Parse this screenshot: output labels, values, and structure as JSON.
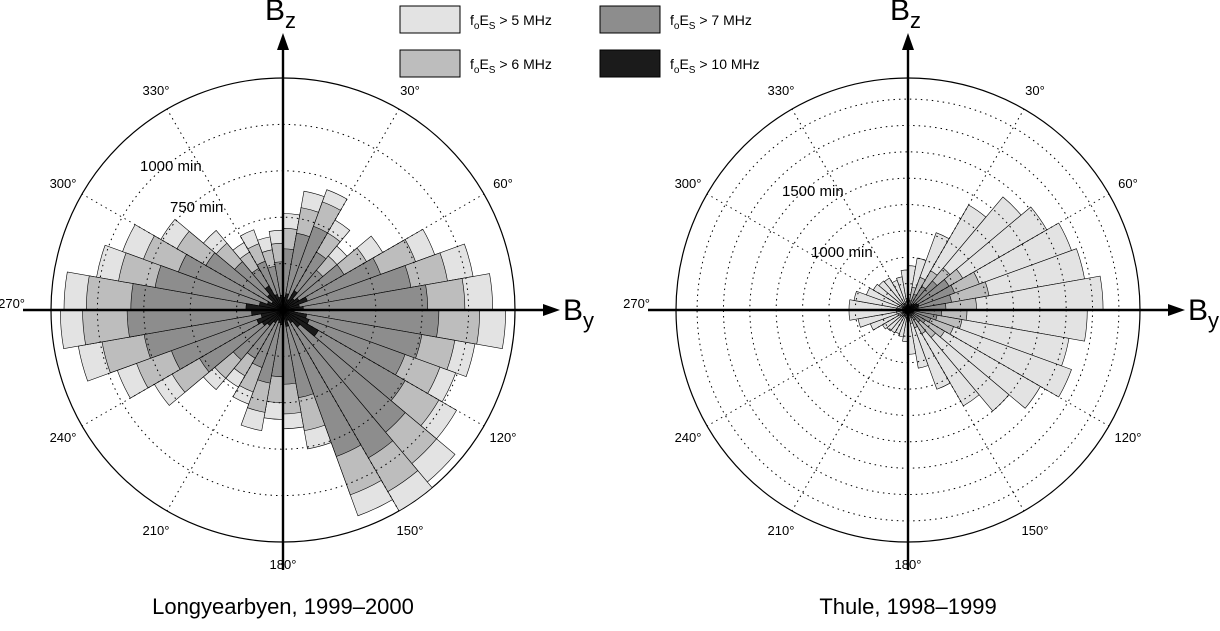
{
  "legend": [
    {
      "label_main": "f",
      "sub1": "o",
      "mid": "E",
      "sub2": "S",
      "rest": " > 5 MHz",
      "color": "#e3e3e3"
    },
    {
      "label_main": "f",
      "sub1": "o",
      "mid": "E",
      "sub2": "S",
      "rest": " > 7 MHz",
      "color": "#8d8d8d"
    },
    {
      "label_main": "f",
      "sub1": "o",
      "mid": "E",
      "sub2": "S",
      "rest": " > 6 MHz",
      "color": "#bdbdbd"
    },
    {
      "label_main": "f",
      "sub1": "o",
      "mid": "E",
      "sub2": "S",
      "rest": " > 10 MHz",
      "color": "#1b1b1b"
    }
  ],
  "axes": {
    "vertical_letter": "B",
    "vertical_sub": "z",
    "horizontal_letter": "B",
    "horizontal_sub": "y"
  },
  "chart_data": [
    {
      "type": "polar-histogram",
      "caption": "Longyearbyen, 1999–2000",
      "bin_width_deg": 10,
      "ring_labels": [
        "750 min",
        "1000 min"
      ],
      "ring_label_values": [
        750,
        1000
      ],
      "r_max_minutes": 1250,
      "angle_labels": [
        "30°",
        "60°",
        "120°",
        "150°",
        "180°",
        "210°",
        "240°",
        "270°",
        "300°",
        "330°"
      ],
      "series": [
        {
          "name": "foEs > 5 MHz",
          "color": "#e3e3e3",
          "values": [
            520,
            650,
            690,
            560,
            450,
            620,
            870,
            1040,
            1130,
            1200,
            1050,
            990,
            1080,
            1210,
            1250,
            1180,
            760,
            640,
            590,
            660,
            540,
            480,
            560,
            800,
            950,
            1120,
            1200,
            1180,
            1020,
            920,
            760,
            560,
            420,
            460,
            400,
            430
          ]
        },
        {
          "name": "foEs > 6 MHz",
          "color": "#bdbdbd",
          "values": [
            440,
            560,
            620,
            480,
            380,
            520,
            760,
            900,
            980,
            1060,
            940,
            900,
            970,
            1080,
            1130,
            1060,
            660,
            560,
            500,
            560,
            470,
            410,
            480,
            690,
            840,
            990,
            1080,
            1060,
            900,
            800,
            660,
            470,
            360,
            380,
            330,
            360
          ]
        },
        {
          "name": "foEs > 7 MHz",
          "color": "#8d8d8d",
          "values": [
            330,
            420,
            480,
            360,
            280,
            380,
            560,
            700,
            780,
            840,
            760,
            700,
            760,
            860,
            920,
            840,
            480,
            400,
            360,
            400,
            330,
            300,
            350,
            520,
            640,
            760,
            840,
            820,
            700,
            600,
            480,
            340,
            260,
            280,
            240,
            260
          ]
        },
        {
          "name": "foEs > 10 MHz",
          "color": "#1b1b1b",
          "values": [
            70,
            90,
            60,
            120,
            80,
            100,
            140,
            90,
            110,
            60,
            130,
            150,
            220,
            120,
            80,
            60,
            90,
            50,
            80,
            70,
            60,
            80,
            110,
            130,
            150,
            120,
            170,
            200,
            130,
            90,
            70,
            110,
            150,
            90,
            70,
            80
          ]
        }
      ]
    },
    {
      "type": "polar-histogram",
      "caption": "Thule, 1998–1999",
      "bin_width_deg": 10,
      "ring_labels": [
        "1000 min",
        "1500 min"
      ],
      "ring_label_values": [
        1000,
        1500
      ],
      "r_max_minutes": 2200,
      "angle_labels": [
        "30°",
        "60°",
        "120°",
        "150°",
        "180°",
        "210°",
        "240°",
        "270°",
        "300°",
        "330°"
      ],
      "series": [
        {
          "name": "foEs > 5 MHz",
          "color": "#e3e3e3",
          "values": [
            420,
            500,
            780,
            1150,
            1400,
            1520,
            1650,
            1700,
            1850,
            1700,
            1550,
            1650,
            1450,
            1250,
            1050,
            800,
            560,
            420,
            300,
            260,
            240,
            250,
            260,
            280,
            380,
            480,
            560,
            560,
            520,
            420,
            380,
            360,
            350,
            300,
            320,
            380
          ]
        },
        {
          "name": "foEs > 6 MHz",
          "color": "#bdbdbd",
          "values": [
            150,
            220,
            330,
            430,
            520,
            600,
            720,
            780,
            650,
            560,
            520,
            460,
            400,
            340,
            260,
            180,
            130,
            100,
            80,
            70,
            60,
            70,
            80,
            90,
            100,
            110,
            110,
            110,
            100,
            90,
            80,
            80,
            70,
            70,
            80,
            110
          ]
        },
        {
          "name": "foEs > 7 MHz",
          "color": "#8d8d8d",
          "values": [
            60,
            90,
            160,
            260,
            360,
            450,
            470,
            420,
            360,
            320,
            280,
            230,
            190,
            150,
            110,
            80,
            60,
            50,
            40,
            40,
            40,
            40,
            40,
            45,
            50,
            50,
            55,
            55,
            55,
            50,
            45,
            45,
            40,
            40,
            45,
            50
          ]
        },
        {
          "name": "foEs > 10 MHz",
          "color": "#1b1b1b",
          "values": [
            20,
            30,
            40,
            60,
            80,
            100,
            110,
            100,
            80,
            70,
            60,
            50,
            40,
            30,
            25,
            20,
            15,
            15,
            15,
            15,
            15,
            15,
            20,
            25,
            30,
            30,
            30,
            30,
            30,
            25,
            20,
            20,
            20,
            15,
            15,
            20
          ]
        }
      ]
    }
  ]
}
